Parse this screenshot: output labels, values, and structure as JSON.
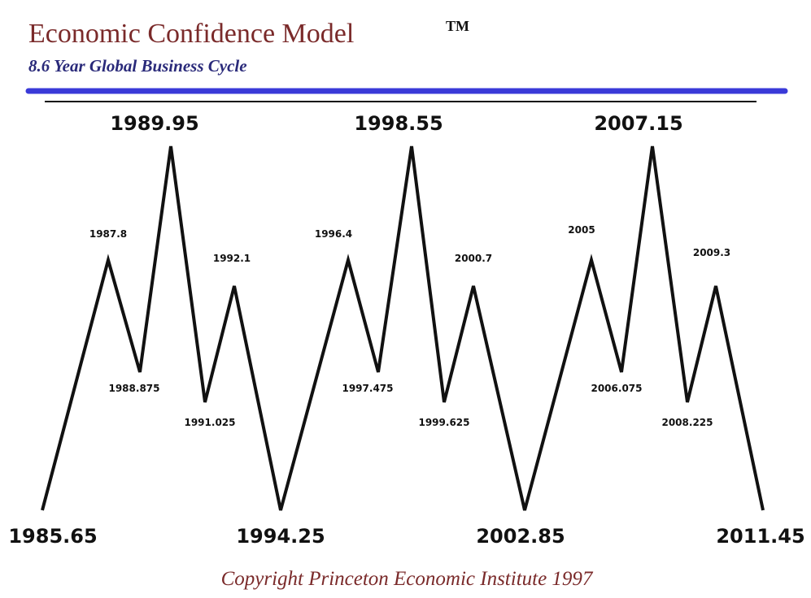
{
  "header": {
    "title": "Economic Confidence Model",
    "mark": "TM",
    "subtitle": "8.6 Year Global Business Cycle"
  },
  "nodes": [
    {
      "label": "1985.65"
    },
    {
      "label": "1987.8"
    },
    {
      "label": "1988.875"
    },
    {
      "label": "1989.95"
    },
    {
      "label": "1991.025"
    },
    {
      "label": "1992.1"
    },
    {
      "label": "1994.25"
    },
    {
      "label": "1996.4"
    },
    {
      "label": "1997.475"
    },
    {
      "label": "1998.55"
    },
    {
      "label": "1999.625"
    },
    {
      "label": "2000.7"
    },
    {
      "label": "2002.85"
    },
    {
      "label": "2005"
    },
    {
      "label": "2006.075"
    },
    {
      "label": "2007.15"
    },
    {
      "label": "2008.225"
    },
    {
      "label": "2009.3"
    },
    {
      "label": "2011.45"
    }
  ],
  "footer": {
    "copyright": "Copyright Princeton Economic Institute 1997"
  }
}
